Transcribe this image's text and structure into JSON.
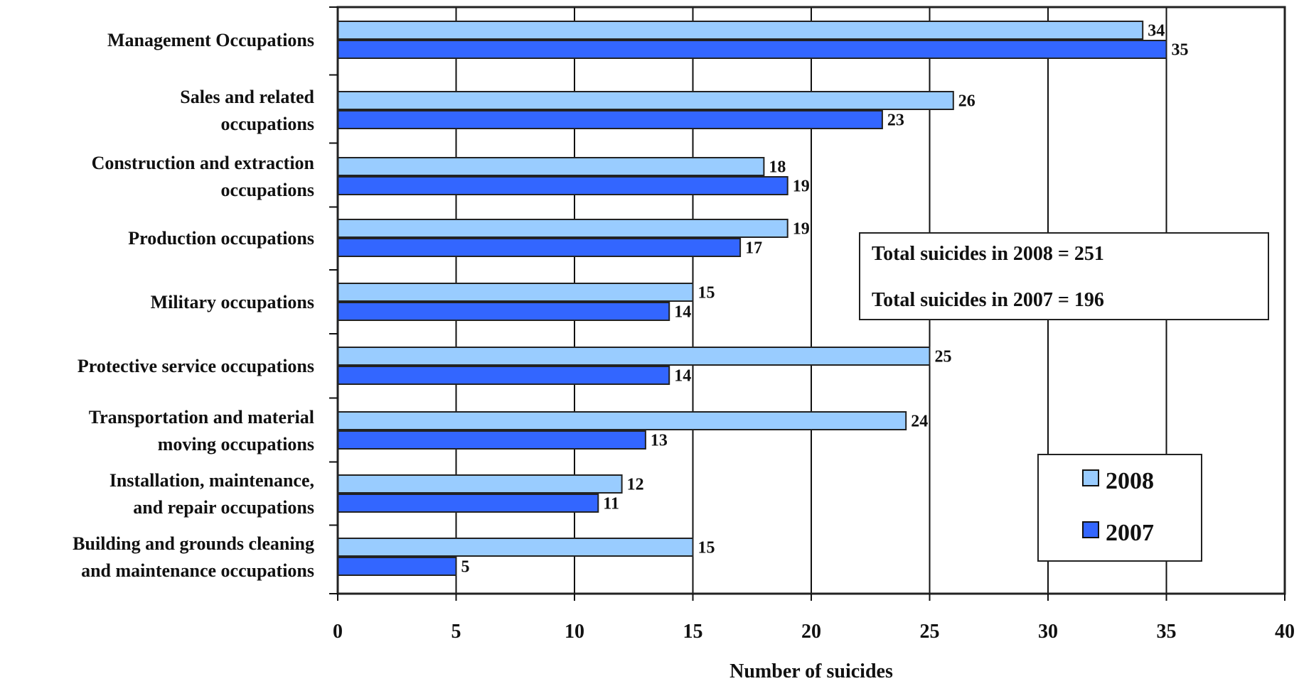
{
  "chart_data": {
    "type": "bar",
    "orientation": "horizontal",
    "categories": [
      [
        "Management Occupations"
      ],
      [
        "Sales and related",
        "occupations"
      ],
      [
        "Construction and extraction",
        "occupations"
      ],
      [
        "Production occupations"
      ],
      [
        "Military occupations"
      ],
      [
        "Protective service occupations"
      ],
      [
        "Transportation and material",
        "moving occupations"
      ],
      [
        "Installation, maintenance,",
        "and repair occupations"
      ],
      [
        "Building and grounds cleaning",
        "and maintenance occupations"
      ]
    ],
    "series": [
      {
        "name": "2008",
        "color": "#99ccff",
        "values": [
          34,
          26,
          18,
          19,
          15,
          25,
          24,
          12,
          15
        ]
      },
      {
        "name": "2007",
        "color": "#3366ff",
        "values": [
          35,
          23,
          19,
          17,
          14,
          14,
          13,
          11,
          5
        ]
      }
    ],
    "xlabel": "Number of suicides",
    "xlim": [
      0,
      40
    ],
    "xticks": [
      0,
      5,
      10,
      15,
      20,
      25,
      30,
      35,
      40
    ],
    "grid": true,
    "legend_position": "bottom-right",
    "annotations": [
      "Total suicides in 2008 = 251",
      "Total suicides in 2007 = 196"
    ]
  }
}
